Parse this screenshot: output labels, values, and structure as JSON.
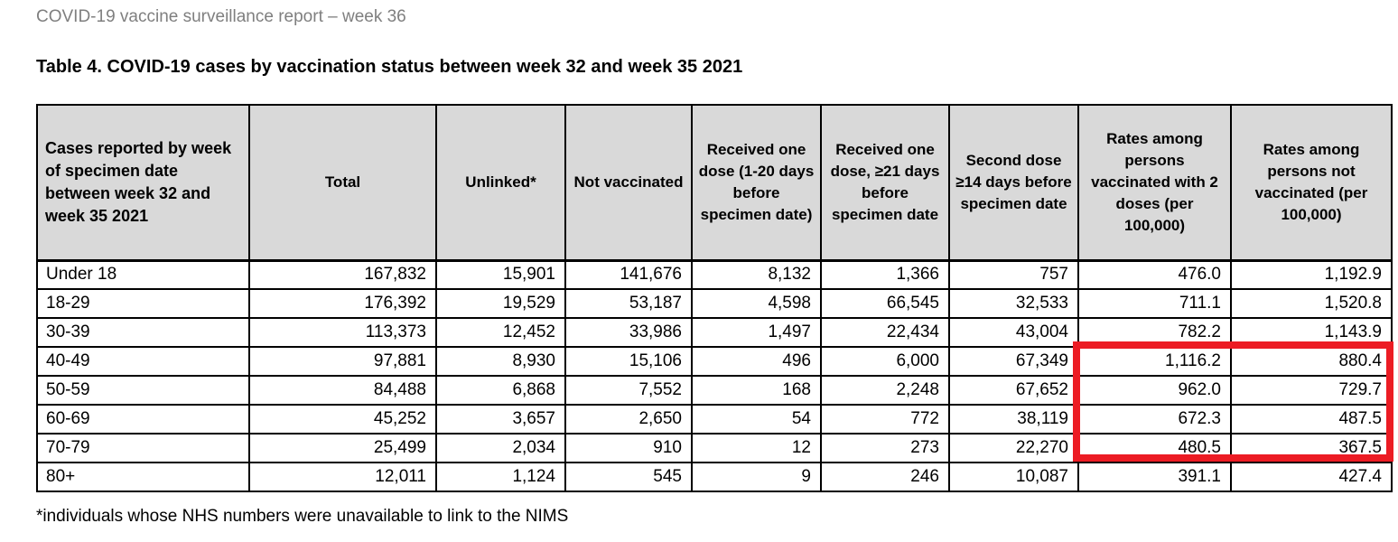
{
  "page": {
    "report_header": "COVID-19 vaccine surveillance report – week 36",
    "table_title": "Table 4. COVID-19 cases by vaccination status between week 32 and week 35 2021",
    "footnote": "*individuals whose NHS numbers were unavailable to link to the NIMS"
  },
  "table": {
    "columns": [
      "Cases reported by week of specimen date between week 32 and week 35 2021",
      "Total",
      "Unlinked*",
      "Not vaccinated",
      "Received one dose (1-20 days before specimen date)",
      "Received one dose, ≥21 days before specimen date",
      "Second dose ≥14 days before specimen date",
      "Rates among persons vaccinated with 2 doses (per 100,000)",
      "Rates among persons not vaccinated (per 100,000)"
    ],
    "rows": [
      [
        "Under 18",
        "167,832",
        "15,901",
        "141,676",
        "8,132",
        "1,366",
        "757",
        "476.0",
        "1,192.9"
      ],
      [
        "18-29",
        "176,392",
        "19,529",
        "53,187",
        "4,598",
        "66,545",
        "32,533",
        "711.1",
        "1,520.8"
      ],
      [
        "30-39",
        "113,373",
        "12,452",
        "33,986",
        "1,497",
        "22,434",
        "43,004",
        "782.2",
        "1,143.9"
      ],
      [
        "40-49",
        "97,881",
        "8,930",
        "15,106",
        "496",
        "6,000",
        "67,349",
        "1,116.2",
        "880.4"
      ],
      [
        "50-59",
        "84,488",
        "6,868",
        "7,552",
        "168",
        "2,248",
        "67,652",
        "962.0",
        "729.7"
      ],
      [
        "60-69",
        "45,252",
        "3,657",
        "2,650",
        "54",
        "772",
        "38,119",
        "672.3",
        "487.5"
      ],
      [
        "70-79",
        "25,499",
        "2,034",
        "910",
        "12",
        "273",
        "22,270",
        "480.5",
        "367.5"
      ],
      [
        "80+",
        "12,011",
        "1,124",
        "545",
        "9",
        "246",
        "10,087",
        "391.1",
        "427.4"
      ]
    ],
    "highlight": {
      "shape": "red-rectangle-annotation",
      "color": "#ec1c24",
      "highlighted_rows": [
        "40-49",
        "50-59",
        "60-69",
        "70-79"
      ],
      "highlighted_columns": [
        "Rates among persons vaccinated with 2 doses (per 100,000)",
        "Rates among persons not vaccinated (per 100,000)"
      ]
    }
  },
  "colors": {
    "header_bg": "#d9d9d9",
    "muted_text": "#7f7f7f",
    "highlight_red": "#ec1c24",
    "border": "#000000"
  }
}
